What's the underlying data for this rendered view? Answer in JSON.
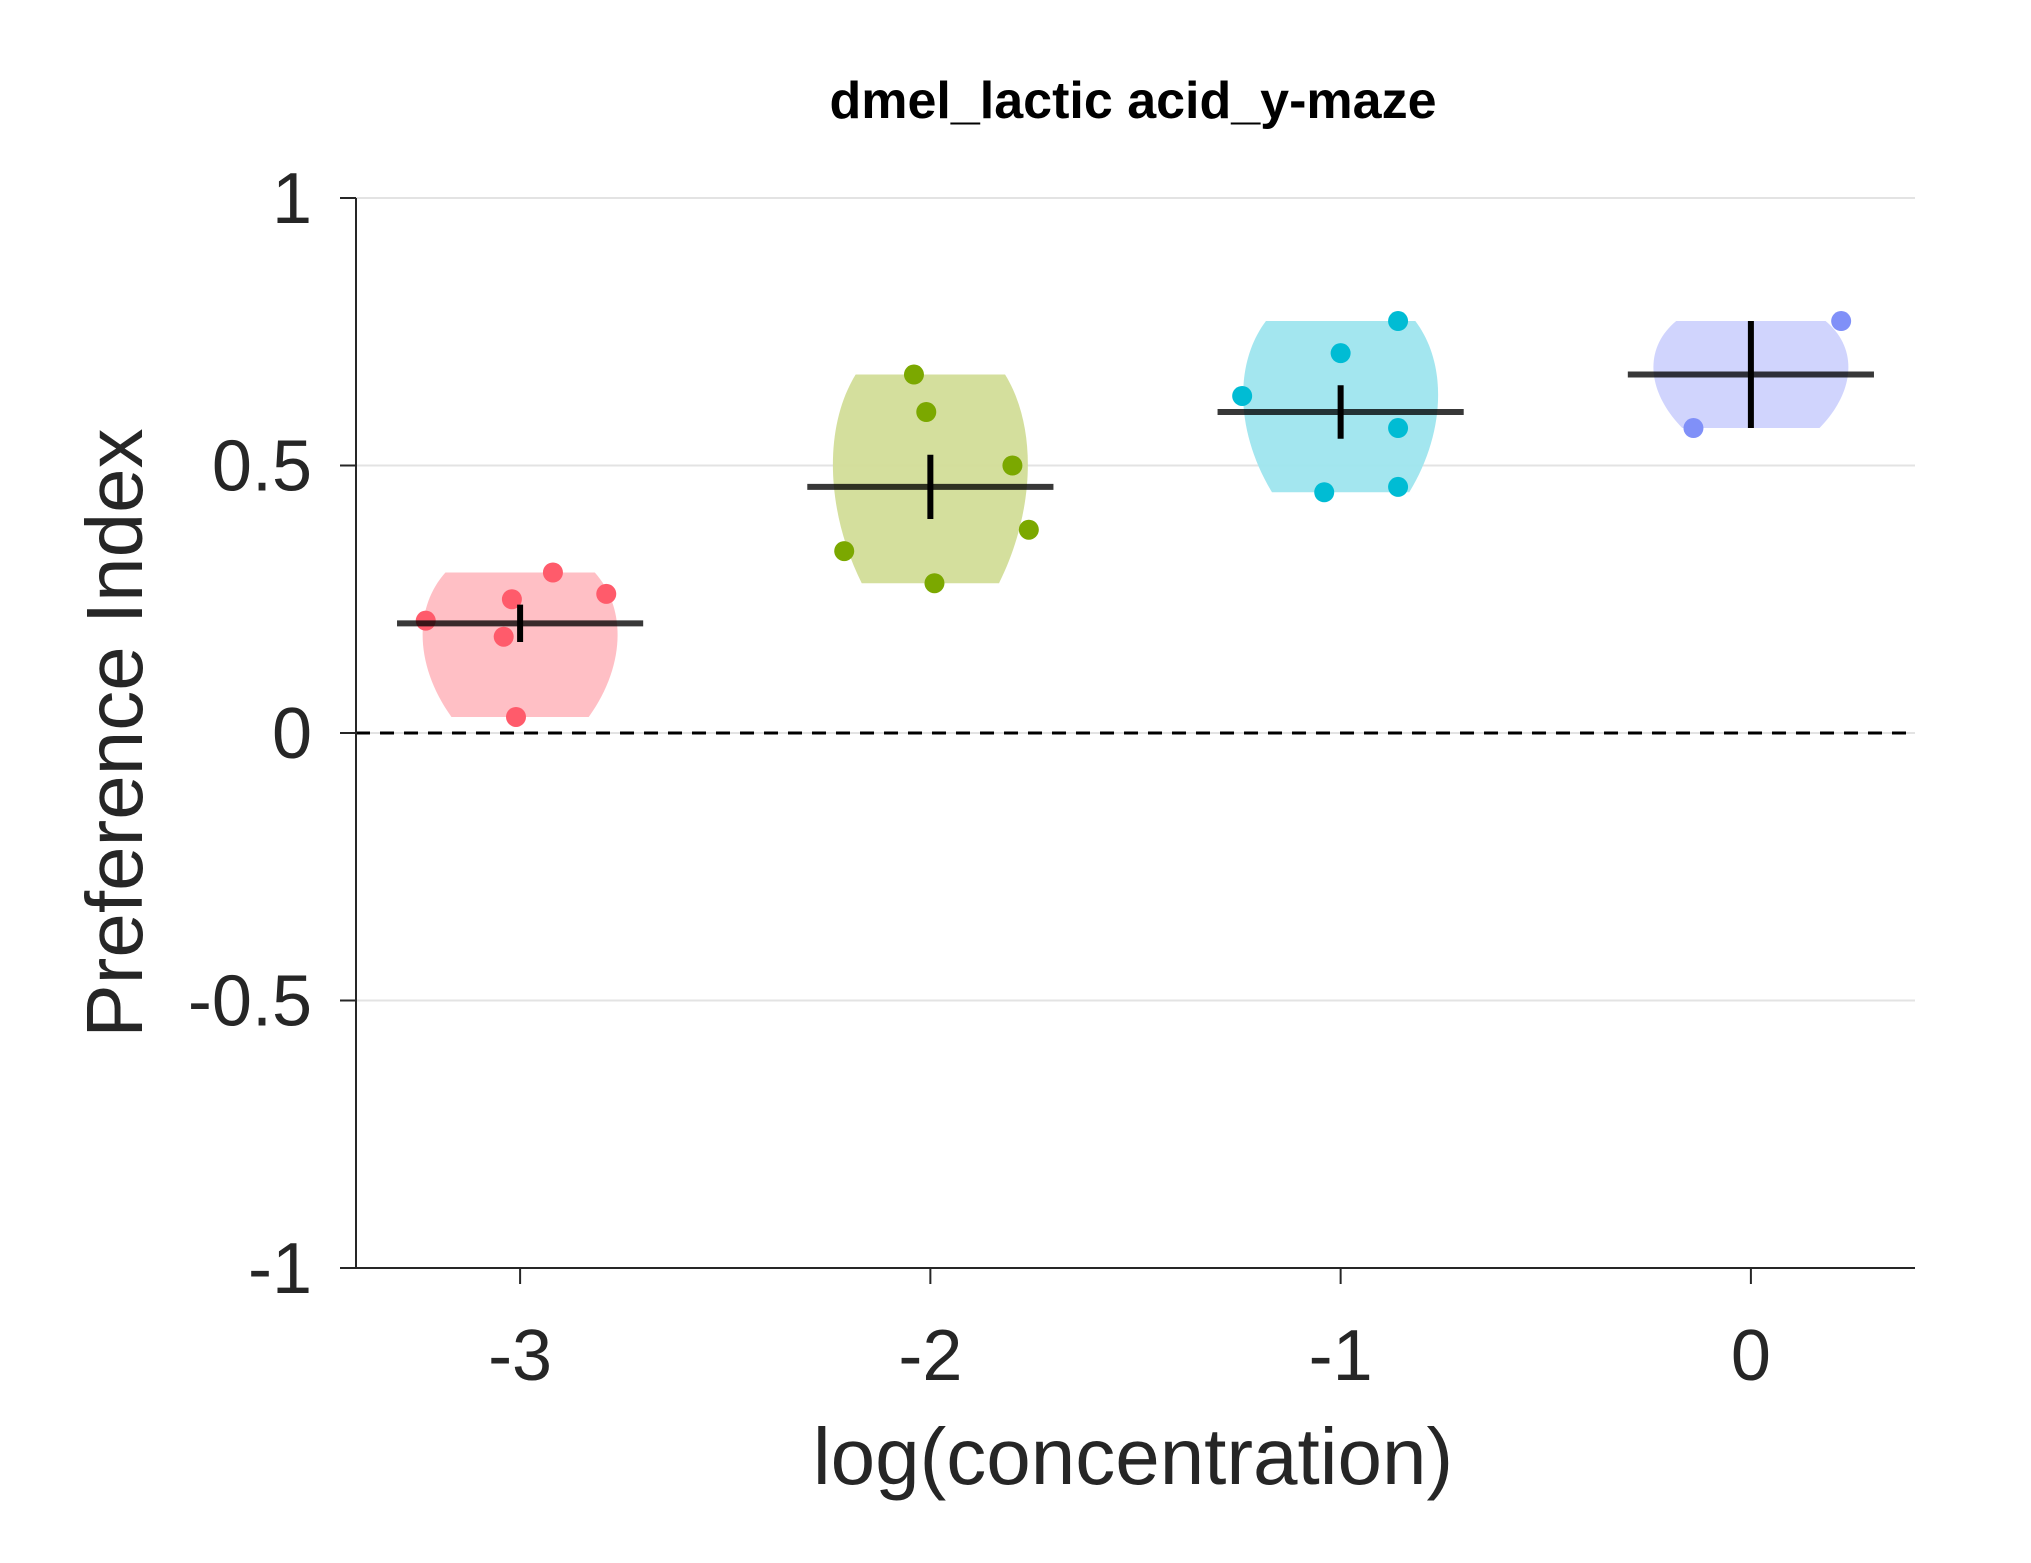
{
  "chart_data": {
    "type": "violin",
    "title": "dmel_lactic acid_y-maze",
    "xlabel": "log(concentration)",
    "ylabel": "Preference Index",
    "ylim": [
      -1,
      1
    ],
    "xlim": [
      -3.4,
      0.4
    ],
    "yticks": [
      {
        "value": 1,
        "label": "1"
      },
      {
        "value": 0.5,
        "label": "0.5"
      },
      {
        "value": 0,
        "label": "0"
      },
      {
        "value": -0.5,
        "label": "-0.5"
      },
      {
        "value": -1,
        "label": "-1"
      }
    ],
    "xticks": [
      {
        "value": -3,
        "label": "-3"
      },
      {
        "value": -2,
        "label": "-2"
      },
      {
        "value": -1,
        "label": "-1"
      },
      {
        "value": 0,
        "label": "0"
      }
    ],
    "grid": "horizontal",
    "reference_line": {
      "y": 0,
      "style": "dashed"
    },
    "groups": [
      {
        "x": -3,
        "color": "#ff5b6b",
        "fill": "#ffbcc2",
        "min": 0.03,
        "max": 0.3,
        "mean": 0.205,
        "sem_low": 0.17,
        "sem_high": 0.24,
        "points": [
          [
            -3.23,
            0.21
          ],
          [
            -3.02,
            0.25
          ],
          [
            -3.04,
            0.18
          ],
          [
            -2.92,
            0.3
          ],
          [
            -2.79,
            0.26
          ],
          [
            -3.01,
            0.03
          ]
        ]
      },
      {
        "x": -2,
        "color": "#7ba800",
        "fill": "#d2dd98",
        "min": 0.28,
        "max": 0.67,
        "mean": 0.46,
        "sem_low": 0.4,
        "sem_high": 0.52,
        "points": [
          [
            -2.04,
            0.67
          ],
          [
            -2.01,
            0.6
          ],
          [
            -1.8,
            0.5
          ],
          [
            -1.76,
            0.38
          ],
          [
            -2.21,
            0.34
          ],
          [
            -1.99,
            0.28
          ]
        ]
      },
      {
        "x": -1,
        "color": "#00bcd4",
        "fill": "#9ee5ee",
        "min": 0.45,
        "max": 0.77,
        "mean": 0.6,
        "sem_low": 0.55,
        "sem_high": 0.65,
        "points": [
          [
            -0.86,
            0.77
          ],
          [
            -1.0,
            0.71
          ],
          [
            -1.24,
            0.63
          ],
          [
            -0.86,
            0.57
          ],
          [
            -0.86,
            0.46
          ],
          [
            -1.04,
            0.45
          ]
        ]
      },
      {
        "x": 0,
        "color": "#8090f8",
        "fill": "#cdd2fd",
        "min": 0.57,
        "max": 0.77,
        "mean": 0.67,
        "sem_low": 0.57,
        "sem_high": 0.77,
        "points": [
          [
            0.22,
            0.77
          ],
          [
            -0.14,
            0.57
          ]
        ]
      }
    ]
  }
}
